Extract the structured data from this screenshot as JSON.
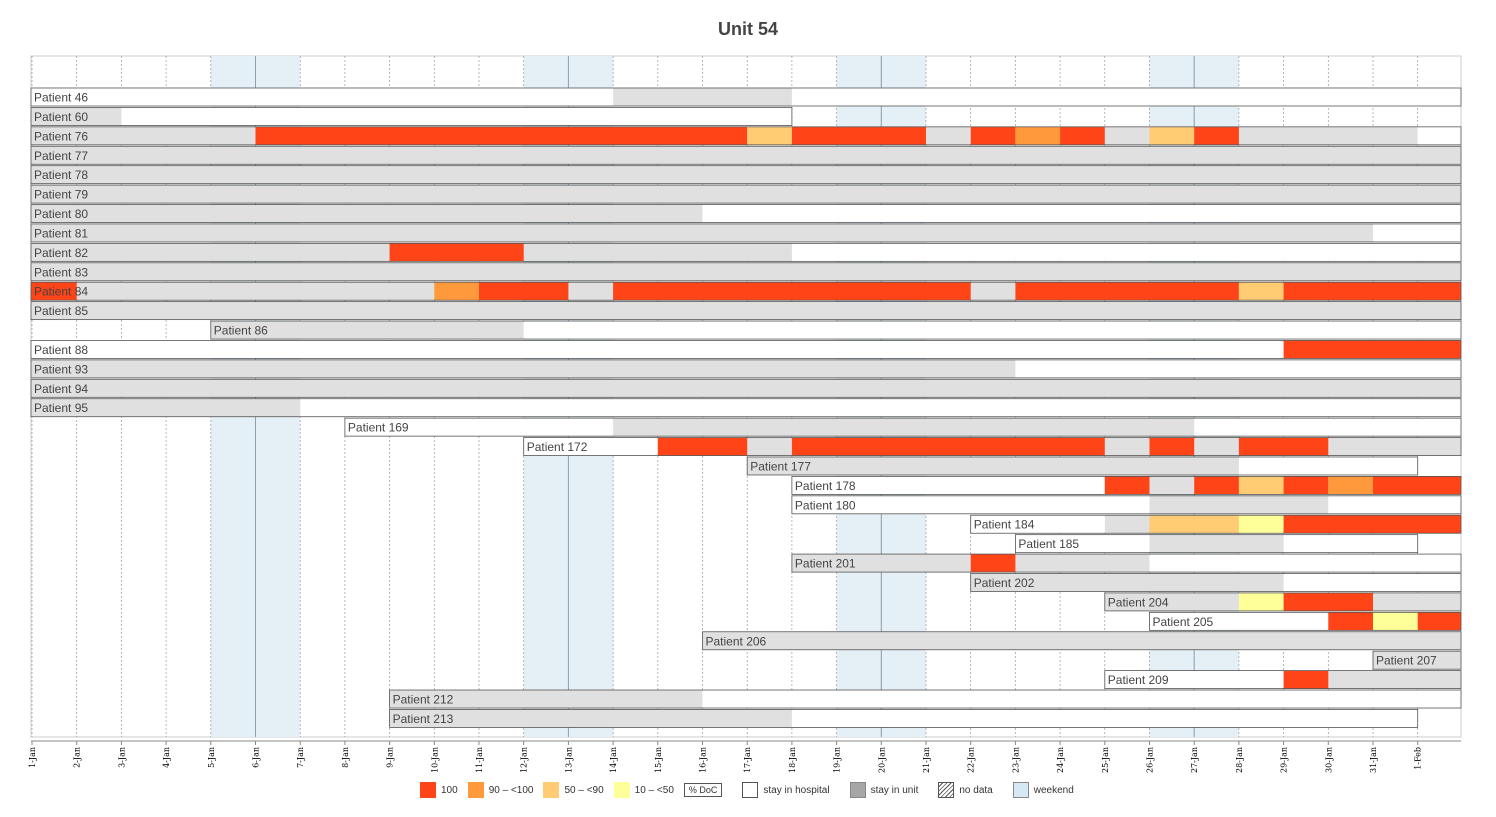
{
  "title": "Unit 54",
  "chart_data": {
    "type": "gantt",
    "title": "Unit 54",
    "days": [
      "1-Jan",
      "2-Jan",
      "3-Jan",
      "4-Jan",
      "5-Jan",
      "6-Jan",
      "7-Jan",
      "8-Jan",
      "9-Jan",
      "10-Jan",
      "11-Jan",
      "12-Jan",
      "13-Jan",
      "14-Jan",
      "15-Jan",
      "16-Jan",
      "17-Jan",
      "18-Jan",
      "19-Jan",
      "20-Jan",
      "21-Jan",
      "22-Jan",
      "23-Jan",
      "24-Jan",
      "25-Jan",
      "26-Jan",
      "27-Jan",
      "28-Jan",
      "29-Jan",
      "30-Jan",
      "31-Jan",
      "1-Feb"
    ],
    "weekend_ranges": [
      [
        "5-Jan",
        "6-Jan"
      ],
      [
        "12-Jan",
        "13-Jan"
      ],
      [
        "19-Jan",
        "20-Jan"
      ],
      [
        "26-Jan",
        "27-Jan"
      ]
    ],
    "patients": [
      {
        "name": "Patient 46",
        "hospital": [
          "1-Jan",
          "1-Feb"
        ],
        "unit": [
          [
            "14-Jan",
            "17-Jan"
          ]
        ],
        "doc": []
      },
      {
        "name": "Patient 60",
        "hospital": [
          "1-Jan",
          "17-Jan"
        ],
        "unit": [
          [
            "1-Jan",
            "2-Jan"
          ]
        ],
        "doc": []
      },
      {
        "name": "Patient 76",
        "hospital": [
          "1-Jan",
          "1-Feb"
        ],
        "unit": [
          [
            "1-Jan",
            "31-Jan"
          ]
        ],
        "doc": [
          [
            "6-Jan",
            "16-Jan",
            "100"
          ],
          [
            "17-Jan",
            "17-Jan",
            "50 – <90"
          ],
          [
            "18-Jan",
            "20-Jan",
            "100"
          ],
          [
            "22-Jan",
            "22-Jan",
            "100"
          ],
          [
            "23-Jan",
            "23-Jan",
            "90 – <100"
          ],
          [
            "24-Jan",
            "24-Jan",
            "100"
          ],
          [
            "26-Jan",
            "26-Jan",
            "50 – <90"
          ],
          [
            "27-Jan",
            "27-Jan",
            "100"
          ]
        ]
      },
      {
        "name": "Patient 77",
        "hospital": [
          "1-Jan",
          "1-Feb"
        ],
        "unit": [
          [
            "1-Jan",
            "1-Feb"
          ]
        ],
        "doc": []
      },
      {
        "name": "Patient 78",
        "hospital": [
          "1-Jan",
          "1-Feb"
        ],
        "unit": [
          [
            "1-Jan",
            "1-Feb"
          ]
        ],
        "doc": []
      },
      {
        "name": "Patient 79",
        "hospital": [
          "1-Jan",
          "1-Feb"
        ],
        "unit": [
          [
            "1-Jan",
            "1-Feb"
          ]
        ],
        "doc": []
      },
      {
        "name": "Patient 80",
        "hospital": [
          "1-Jan",
          "1-Feb"
        ],
        "unit": [
          [
            "1-Jan",
            "15-Jan"
          ]
        ],
        "doc": []
      },
      {
        "name": "Patient 81",
        "hospital": [
          "1-Jan",
          "1-Feb"
        ],
        "unit": [
          [
            "1-Jan",
            "30-Jan"
          ]
        ],
        "doc": []
      },
      {
        "name": "Patient 82",
        "hospital": [
          "1-Jan",
          "1-Feb"
        ],
        "unit": [
          [
            "1-Jan",
            "17-Jan"
          ]
        ],
        "doc": [
          [
            "9-Jan",
            "11-Jan",
            "100"
          ]
        ]
      },
      {
        "name": "Patient 83",
        "hospital": [
          "1-Jan",
          "1-Feb"
        ],
        "unit": [
          [
            "1-Jan",
            "1-Feb"
          ]
        ],
        "doc": []
      },
      {
        "name": "Patient 84",
        "hospital": [
          "1-Jan",
          "1-Feb"
        ],
        "unit": [
          [
            "1-Jan",
            "1-Feb"
          ]
        ],
        "doc": [
          [
            "1-Jan",
            "1-Jan",
            "100"
          ],
          [
            "10-Jan",
            "10-Jan",
            "90 – <100"
          ],
          [
            "11-Jan",
            "12-Jan",
            "100"
          ],
          [
            "14-Jan",
            "21-Jan",
            "100"
          ],
          [
            "23-Jan",
            "27-Jan",
            "100"
          ],
          [
            "28-Jan",
            "28-Jan",
            "50 – <90"
          ],
          [
            "29-Jan",
            "1-Feb",
            "100"
          ]
        ]
      },
      {
        "name": "Patient 85",
        "hospital": [
          "1-Jan",
          "1-Feb"
        ],
        "unit": [
          [
            "1-Jan",
            "1-Feb"
          ]
        ],
        "doc": []
      },
      {
        "name": "Patient 86",
        "hospital": [
          "5-Jan",
          "1-Feb"
        ],
        "unit": [
          [
            "5-Jan",
            "11-Jan"
          ]
        ],
        "doc": []
      },
      {
        "name": "Patient 88",
        "hospital": [
          "1-Jan",
          "1-Feb"
        ],
        "unit": [],
        "doc": [
          [
            "29-Jan",
            "1-Feb",
            "100"
          ]
        ]
      },
      {
        "name": "Patient 93",
        "hospital": [
          "1-Jan",
          "1-Feb"
        ],
        "unit": [
          [
            "1-Jan",
            "22-Jan"
          ]
        ],
        "doc": []
      },
      {
        "name": "Patient 94",
        "hospital": [
          "1-Jan",
          "1-Feb"
        ],
        "unit": [
          [
            "1-Jan",
            "1-Feb"
          ]
        ],
        "doc": []
      },
      {
        "name": "Patient 95",
        "hospital": [
          "1-Jan",
          "1-Feb"
        ],
        "unit": [
          [
            "1-Jan",
            "6-Jan"
          ]
        ],
        "doc": []
      },
      {
        "name": "Patient 169",
        "hospital": [
          "8-Jan",
          "1-Feb"
        ],
        "unit": [
          [
            "14-Jan",
            "26-Jan"
          ]
        ],
        "doc": []
      },
      {
        "name": "Patient 172",
        "hospital": [
          "12-Jan",
          "1-Feb"
        ],
        "unit": [
          [
            "15-Jan",
            "1-Feb"
          ]
        ],
        "doc": [
          [
            "15-Jan",
            "16-Jan",
            "100"
          ],
          [
            "18-Jan",
            "24-Jan",
            "100"
          ],
          [
            "26-Jan",
            "26-Jan",
            "100"
          ],
          [
            "28-Jan",
            "29-Jan",
            "100"
          ]
        ]
      },
      {
        "name": "Patient 177",
        "hospital": [
          "17-Jan",
          "31-Jan"
        ],
        "unit": [
          [
            "17-Jan",
            "27-Jan"
          ]
        ],
        "doc": []
      },
      {
        "name": "Patient 178",
        "hospital": [
          "18-Jan",
          "1-Feb"
        ],
        "unit": [
          [
            "25-Jan",
            "1-Feb"
          ]
        ],
        "doc": [
          [
            "25-Jan",
            "25-Jan",
            "100"
          ],
          [
            "27-Jan",
            "27-Jan",
            "100"
          ],
          [
            "28-Jan",
            "28-Jan",
            "50 – <90"
          ],
          [
            "29-Jan",
            "29-Jan",
            "100"
          ],
          [
            "30-Jan",
            "30-Jan",
            "90 – <100"
          ],
          [
            "31-Jan",
            "1-Feb",
            "100"
          ]
        ]
      },
      {
        "name": "Patient 180",
        "hospital": [
          "18-Jan",
          "1-Feb"
        ],
        "unit": [
          [
            "26-Jan",
            "29-Jan"
          ]
        ],
        "doc": []
      },
      {
        "name": "Patient 184",
        "hospital": [
          "22-Jan",
          "1-Feb"
        ],
        "unit": [
          [
            "25-Jan",
            "1-Feb"
          ]
        ],
        "doc": [
          [
            "26-Jan",
            "27-Jan",
            "50 – <90"
          ],
          [
            "28-Jan",
            "28-Jan",
            "10 – <50"
          ],
          [
            "29-Jan",
            "1-Feb",
            "100"
          ]
        ]
      },
      {
        "name": "Patient 185",
        "hospital": [
          "23-Jan",
          "31-Jan"
        ],
        "unit": [
          [
            "26-Jan",
            "28-Jan"
          ]
        ],
        "doc": []
      },
      {
        "name": "Patient 201",
        "hospital": [
          "18-Jan",
          "1-Feb"
        ],
        "unit": [
          [
            "18-Jan",
            "25-Jan"
          ]
        ],
        "doc": [
          [
            "22-Jan",
            "22-Jan",
            "100"
          ]
        ]
      },
      {
        "name": "Patient 202",
        "hospital": [
          "22-Jan",
          "1-Feb"
        ],
        "unit": [
          [
            "22-Jan",
            "28-Jan"
          ]
        ],
        "doc": []
      },
      {
        "name": "Patient 204",
        "hospital": [
          "25-Jan",
          "1-Feb"
        ],
        "unit": [
          [
            "25-Jan",
            "1-Feb"
          ]
        ],
        "doc": [
          [
            "28-Jan",
            "28-Jan",
            "10 – <50"
          ],
          [
            "29-Jan",
            "30-Jan",
            "100"
          ]
        ]
      },
      {
        "name": "Patient 205",
        "hospital": [
          "26-Jan",
          "1-Feb"
        ],
        "unit": [
          [
            "30-Jan",
            "1-Feb"
          ]
        ],
        "doc": [
          [
            "30-Jan",
            "30-Jan",
            "100"
          ],
          [
            "31-Jan",
            "31-Jan",
            "10 – <50"
          ],
          [
            "1-Feb",
            "1-Feb",
            "100"
          ]
        ]
      },
      {
        "name": "Patient 206",
        "hospital": [
          "16-Jan",
          "1-Feb"
        ],
        "unit": [
          [
            "16-Jan",
            "1-Feb"
          ]
        ],
        "doc": []
      },
      {
        "name": "Patient 207",
        "hospital": [
          "31-Jan",
          "1-Feb"
        ],
        "unit": [
          [
            "31-Jan",
            "1-Feb"
          ]
        ],
        "doc": []
      },
      {
        "name": "Patient 209",
        "hospital": [
          "25-Jan",
          "1-Feb"
        ],
        "unit": [
          [
            "29-Jan",
            "1-Feb"
          ]
        ],
        "doc": [
          [
            "29-Jan",
            "29-Jan",
            "100"
          ]
        ]
      },
      {
        "name": "Patient 212",
        "hospital": [
          "9-Jan",
          "1-Feb"
        ],
        "unit": [
          [
            "9-Jan",
            "15-Jan"
          ]
        ],
        "doc": []
      },
      {
        "name": "Patient 213",
        "hospital": [
          "9-Jan",
          "31-Jan"
        ],
        "unit": [
          [
            "9-Jan",
            "17-Jan"
          ]
        ],
        "doc": []
      }
    ],
    "legend": {
      "doc": [
        {
          "label": "100",
          "color": "#ff4418"
        },
        {
          "label": "90 – <100",
          "color": "#ff9a3c"
        },
        {
          "label": "50 – <90",
          "color": "#ffcc73"
        },
        {
          "label": "10 – <50",
          "color": "#ffff99"
        }
      ],
      "doc_title": "% DoC",
      "other": [
        {
          "key": "hospital",
          "label": "stay in hospital"
        },
        {
          "key": "unit",
          "label": "stay in unit"
        },
        {
          "key": "nodata",
          "label": "no data"
        },
        {
          "key": "weekend",
          "label": "weekend"
        }
      ]
    },
    "colors": {
      "unit": "#e0e0e0",
      "weekend": "#e4eff6",
      "weekend_line": "#8ea0ad",
      "grid": "#999999",
      "border": "#555555"
    }
  }
}
